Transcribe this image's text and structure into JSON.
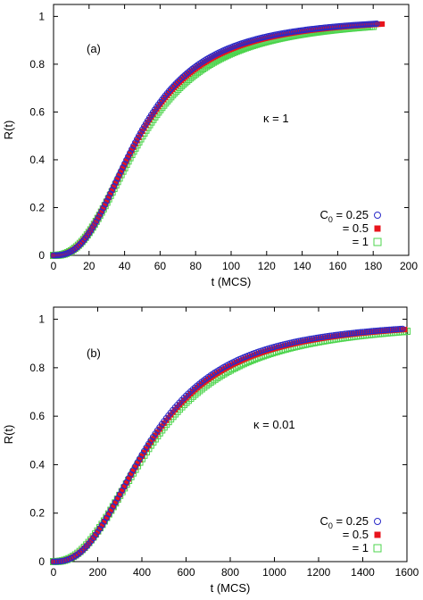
{
  "chart_data": [
    {
      "type": "scatter",
      "panel_label": "(a)",
      "annotation": "κ = 1",
      "xlabel": "t (MCS)",
      "ylabel": "R(t)",
      "xlim": [
        0,
        200
      ],
      "ylim": [
        0,
        1.05
      ],
      "xticks": [
        "0",
        "20",
        "40",
        "60",
        "80",
        "100",
        "120",
        "140",
        "160",
        "180",
        "200"
      ],
      "yticks": [
        "0",
        "0.2",
        "0.4",
        "0.6",
        "0.8",
        "1"
      ],
      "legend_position": "bottom-right",
      "grid": false,
      "series": [
        {
          "name": "C0 = 0.25",
          "marker": "circle",
          "color": "#2a2ac8",
          "tau": 48,
          "p": 2.6,
          "x_step": 1,
          "x_max": 182
        },
        {
          "name": "= 0.5",
          "marker": "filled-square",
          "color": "#e8141c",
          "tau": 48.5,
          "p": 2.55,
          "x_step": 1,
          "x_max": 185
        },
        {
          "name": "= 1",
          "marker": "open-square",
          "color": "#4dd44d",
          "tau": 50,
          "p": 2.45,
          "x_step": 1,
          "x_max": 180
        }
      ],
      "legend": [
        "C0 = 0.25",
        "= 0.5",
        "= 1"
      ]
    },
    {
      "type": "scatter",
      "panel_label": "(b)",
      "annotation": "κ = 0.01",
      "xlabel": "t (MCS)",
      "ylabel": "R(t)",
      "xlim": [
        0,
        1600
      ],
      "ylim": [
        0,
        1.05
      ],
      "xticks": [
        "0",
        "200",
        "400",
        "600",
        "800",
        "1000",
        "1200",
        "1400",
        "1600"
      ],
      "yticks": [
        "0",
        "0.2",
        "0.4",
        "0.6",
        "0.8",
        "1"
      ],
      "legend_position": "bottom-right",
      "grid": false,
      "series": [
        {
          "name": "C0 = 0.25",
          "marker": "circle",
          "color": "#2a2ac8",
          "tau": 440,
          "p": 2.5,
          "x_step": 10,
          "x_max": 1580
        },
        {
          "name": "= 0.5",
          "marker": "filled-square",
          "color": "#e8141c",
          "tau": 445,
          "p": 2.45,
          "x_step": 10,
          "x_max": 1590
        },
        {
          "name": "= 1",
          "marker": "open-square",
          "color": "#4dd44d",
          "tau": 455,
          "p": 2.35,
          "x_step": 10,
          "x_max": 1600
        }
      ],
      "legend": [
        "C0 = 0.25",
        "= 0.5",
        "= 1"
      ]
    }
  ]
}
